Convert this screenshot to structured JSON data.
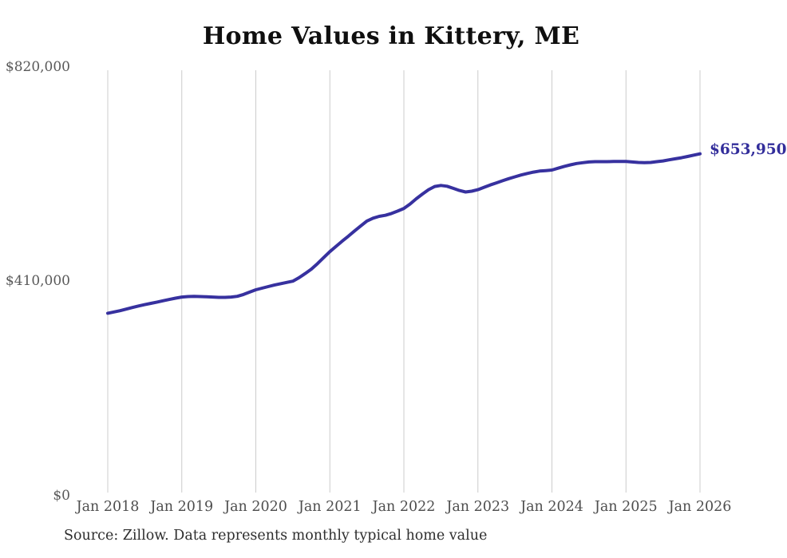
{
  "title": "Home Values in Kittery, ME",
  "source_note": "Source: Zillow. Data represents monthly typical home value",
  "end_label": "$653,950",
  "colors": {
    "line": "#37319f",
    "end_label": "#332e9b",
    "gridline": "#cccccc",
    "y_axis_text": "#595959",
    "x_axis_text": "#4d4d4d",
    "title_text": "#0f0f0f",
    "source_text": "#2e2e2e"
  },
  "y_axis": {
    "ticks": [
      "$820,000",
      "$410,000",
      "$0"
    ],
    "min": 0,
    "max": 820000
  },
  "x_axis": {
    "ticks": [
      "Jan 2018",
      "Jan 2019",
      "Jan 2020",
      "Jan 2021",
      "Jan 2022",
      "Jan 2023",
      "Jan 2024",
      "Jan 2025",
      "Jan 2026"
    ]
  },
  "chart_data": {
    "type": "line",
    "title": "Home Values in Kittery, ME",
    "xlabel": "",
    "ylabel": "",
    "ylim": [
      0,
      820000
    ],
    "grid": "vertical-only",
    "legend": "none",
    "frequency": "monthly",
    "x_start": "2018-01",
    "x_end": "2026-01",
    "last_value_label": "$653,950",
    "months": [
      "2018-01",
      "2018-02",
      "2018-03",
      "2018-04",
      "2018-05",
      "2018-06",
      "2018-07",
      "2018-08",
      "2018-09",
      "2018-10",
      "2018-11",
      "2018-12",
      "2019-01",
      "2019-02",
      "2019-03",
      "2019-04",
      "2019-05",
      "2019-06",
      "2019-07",
      "2019-08",
      "2019-09",
      "2019-10",
      "2019-11",
      "2019-12",
      "2020-01",
      "2020-02",
      "2020-03",
      "2020-04",
      "2020-05",
      "2020-06",
      "2020-07",
      "2020-08",
      "2020-09",
      "2020-10",
      "2020-11",
      "2020-12",
      "2021-01",
      "2021-02",
      "2021-03",
      "2021-04",
      "2021-05",
      "2021-06",
      "2021-07",
      "2021-08",
      "2021-09",
      "2021-10",
      "2021-11",
      "2021-12",
      "2022-01",
      "2022-02",
      "2022-03",
      "2022-04",
      "2022-05",
      "2022-06",
      "2022-07",
      "2022-08",
      "2022-09",
      "2022-10",
      "2022-11",
      "2022-12",
      "2023-01",
      "2023-02",
      "2023-03",
      "2023-04",
      "2023-05",
      "2023-06",
      "2023-07",
      "2023-08",
      "2023-09",
      "2023-10",
      "2023-11",
      "2023-12",
      "2024-01",
      "2024-02",
      "2024-03",
      "2024-04",
      "2024-05",
      "2024-06",
      "2024-07",
      "2024-08",
      "2024-09",
      "2024-10",
      "2024-11",
      "2024-12",
      "2025-01",
      "2025-02",
      "2025-03",
      "2025-04",
      "2025-05",
      "2025-06",
      "2025-07",
      "2025-08",
      "2025-09",
      "2025-10",
      "2025-11",
      "2025-12",
      "2026-01"
    ],
    "values": [
      349000,
      351500,
      354000,
      357000,
      360000,
      363000,
      365500,
      368000,
      370500,
      373000,
      375500,
      378000,
      380000,
      381000,
      381500,
      381000,
      380500,
      380000,
      379500,
      379500,
      380000,
      381500,
      385000,
      389500,
      394000,
      397000,
      400000,
      403000,
      405500,
      408000,
      410500,
      417000,
      425000,
      433500,
      444000,
      455500,
      467000,
      477000,
      487000,
      496500,
      506500,
      516000,
      525500,
      531000,
      534500,
      536500,
      540000,
      544500,
      549500,
      558000,
      568000,
      577000,
      585500,
      591500,
      593500,
      592000,
      588000,
      584000,
      581000,
      582500,
      585500,
      590000,
      594500,
      598500,
      602500,
      606500,
      610000,
      613500,
      616500,
      619000,
      621000,
      622000,
      623000,
      626500,
      630000,
      633000,
      635500,
      637000,
      638500,
      639000,
      639000,
      639000,
      639500,
      639500,
      639500,
      638500,
      637500,
      637000,
      637500,
      639000,
      640500,
      642500,
      644500,
      646500,
      649000,
      651500,
      653950
    ]
  }
}
